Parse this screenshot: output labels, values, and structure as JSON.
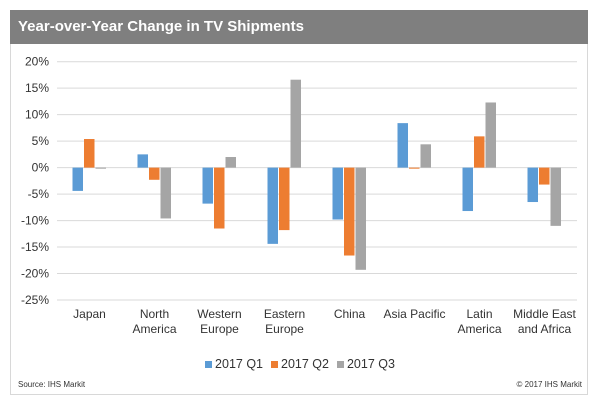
{
  "chart_data": {
    "type": "bar",
    "title": "Year-over-Year Change in TV Shipments",
    "categories": [
      "Japan",
      "North America",
      "Western Europe",
      "Eastern Europe",
      "China",
      "Asia Pacific",
      "Latin America",
      "Middle East and Africa"
    ],
    "category_lines": [
      [
        "Japan"
      ],
      [
        "North",
        "America"
      ],
      [
        "Western",
        "Europe"
      ],
      [
        "Eastern",
        "Europe"
      ],
      [
        "China"
      ],
      [
        "Asia Pacific"
      ],
      [
        "Latin",
        "America"
      ],
      [
        "Middle East",
        "and Africa"
      ]
    ],
    "series": [
      {
        "name": "2017 Q1",
        "color": "#5b9bd5",
        "values": [
          -4.4,
          2.5,
          -6.8,
          -14.4,
          -9.8,
          8.4,
          -8.2,
          -6.5
        ]
      },
      {
        "name": "2017 Q2",
        "color": "#ed7d31",
        "values": [
          5.4,
          -2.3,
          -11.5,
          -11.8,
          -16.6,
          -0.2,
          5.9,
          -3.2
        ]
      },
      {
        "name": "2017 Q3",
        "color": "#a5a5a5",
        "values": [
          -0.2,
          -9.6,
          2.0,
          16.6,
          -19.3,
          4.4,
          12.3,
          -11.0
        ]
      }
    ],
    "ylim": [
      -25,
      20
    ],
    "yticks": [
      20,
      15,
      10,
      5,
      0,
      -5,
      -10,
      -15,
      -20,
      -25
    ],
    "ytick_labels": [
      "20%",
      "15%",
      "10%",
      "5%",
      "0%",
      "-5%",
      "-10%",
      "-15%",
      "-20%",
      "-25%"
    ],
    "xlabel": "",
    "ylabel": "",
    "grid": true,
    "legend": "bottom"
  },
  "footer": {
    "source": "Source: IHS Markit",
    "copyright": "© 2017 IHS Markit"
  }
}
